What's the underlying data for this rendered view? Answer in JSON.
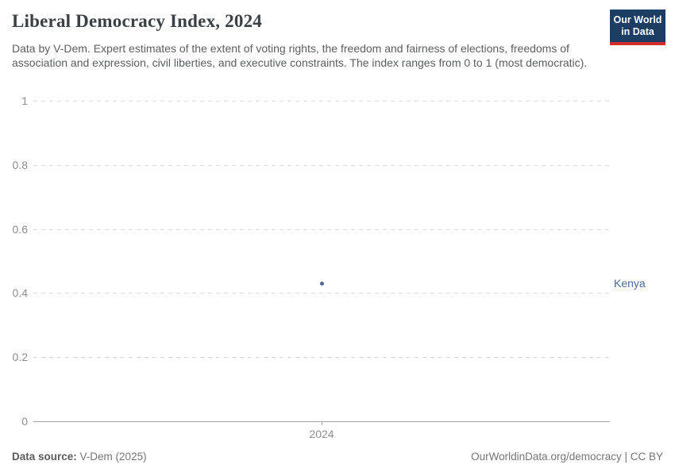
{
  "header": {
    "title": "Liberal Democracy Index, 2024",
    "subtitle": "Data by V-Dem. Expert estimates of the extent of voting rights, the freedom and fairness of elections, freedoms of association and expression, civil liberties, and executive constraints. The index ranges from 0 to 1 (most democratic).",
    "logo": {
      "line1": "Our World",
      "line2": "in Data",
      "bg_color": "#1d3d63",
      "bar_color": "#d42b2f"
    }
  },
  "chart_data": {
    "type": "scatter",
    "title": "Liberal Democracy Index, 2024",
    "xlabel": "",
    "ylabel": "",
    "x": [
      2024
    ],
    "x_tick_labels": [
      "2024"
    ],
    "series": [
      {
        "name": "Kenya",
        "x": [
          2024
        ],
        "values": [
          0.43
        ],
        "color": "#4c6a9c"
      }
    ],
    "y_ticks": [
      0,
      0.2,
      0.4,
      0.6,
      0.8,
      1
    ],
    "y_tick_labels": [
      "0",
      "0.2",
      "0.4",
      "0.6",
      "0.8",
      "1"
    ],
    "ylim": [
      0,
      1
    ],
    "grid": true,
    "gridline_style": "dashed",
    "legend_position": "entity-label-right"
  },
  "footer": {
    "source_label": "Data source:",
    "source_value": "V-Dem (2025)",
    "credit": "OurWorldinData.org/democracy | CC BY"
  },
  "colors": {
    "title_text": "#3b4045",
    "subtitle_text": "#5b5e61",
    "axis_text": "#8e8e8e",
    "gridline": "#dcdcdc",
    "axis_line": "#a3a3a3",
    "series_accent": "#4c6a9c"
  }
}
